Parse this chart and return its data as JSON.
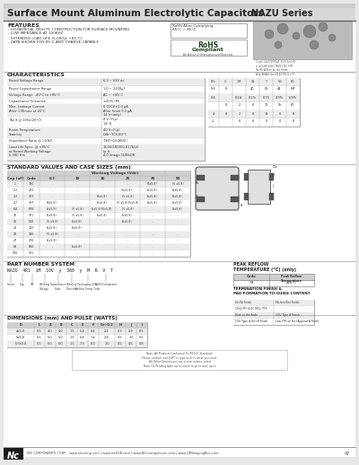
{
  "title_left": "Surface Mount Aluminum Electrolytic Capacitors",
  "title_right": "NAZU Series",
  "bg_color": "#e8e8e8",
  "content_bg": "#f0f0f0",
  "header_line_color": "#555555",
  "text_color": "#333333",
  "features_title": "FEATURES",
  "features": [
    "- CYLINDRICAL HIGH PC CONSTRUCTION FOR SURFACE MOUNTING",
    "- LOW IMPEDANCE AT 100KHZ",
    "- EXTENDED LOAD LIFE (5,000@ +85°C)",
    "- DATA SHOWN FOR 85°C ANTI CHARGE CAPABLE"
  ],
  "rohs_line1": "RoHS After Complying",
  "rohs_line2": "85°C ~ 85°C",
  "rohs_box": "RoHS\nCompliant",
  "rohs_sub": "An Achoa of Homogeneous Materials",
  "char_title": "CHARACTERISTICS",
  "char_col1": [
    "Rated Voltage Range",
    "Rated Capacitance Range",
    "Voltage Range  -40°C to +85°C",
    "Capacitance Tolerance",
    "Max. Leakage Current\nAfter 1 Minute at 20°C",
    "Tan δ @ 20Hz(20°C)",
    "Room Temperature\nStability",
    "Impedance Ratio @ 1 KHZ",
    "Load Life Spec. @ +85°C\nat Rated Working Voltage\n5,000 Hrs"
  ],
  "char_col2": [
    "6.3 ~ 63V dc",
    "1.0 ~ 2200μF",
    "AC ~ +85°C",
    "±20% (M)",
    "0.01CV+1.0 μA\nAfter 5min 2.0 μA\n14 Ir (only)",
    "8 V~F(p)\n14  8",
    "40 V~F(p)\nCdb~TCS-40°C",
    "7.8(F)(100KHZ)",
    "13,000,000(0.0176(U)\nIp Ir\n4.0 Image CURSOR"
  ],
  "sv_title": "STANDARD VALUES AND CASE SIZES (mm)",
  "sv_headers": [
    "Cap (uF)",
    "Code",
    "6.3",
    "10",
    "16",
    "25",
    "35",
    "50"
  ],
  "sv_rows": [
    [
      "1",
      "1R0",
      ".",
      ".",
      ".",
      ".",
      "(4x5.8)",
      "(5 x5.8)"
    ],
    [
      "2.2",
      "2R2",
      ".",
      ".",
      ".",
      "(5x5.8)",
      "(5x5.8)",
      "(5x5.8)"
    ],
    [
      "3.3",
      "3R3",
      ".",
      ".",
      "(4x5.8)",
      "(5 x5.8)",
      "(5x5.8)",
      "(6x5.8)"
    ],
    [
      "4.7",
      "4R7",
      "(4x5.8)",
      ".",
      "(5x5.8)",
      "(5 x5.8)(5x5.8)",
      "(5x5.8)",
      "(5x5.8)"
    ],
    [
      "6.8",
      "6R8",
      "(5x5.8)",
      "(5 x5.8)",
      "(5x5.8)(5x5.8)",
      "(5 x5.8)",
      ".",
      "(5x5.8)"
    ],
    [
      "10",
      "101",
      "(5x5.8)",
      "(5 x5.8)",
      "(5x5.8)",
      "(5x5.8)",
      ".",
      "."
    ],
    [
      "15",
      "150",
      "(5 x5.8)",
      "(5x5.8)",
      ".",
      "(5x5.8)",
      ".",
      "."
    ],
    [
      "22",
      "220",
      "(5x5.8)",
      "(5x5.8)",
      ".",
      ".",
      ".",
      "."
    ],
    [
      "33",
      "330",
      "(5 x5.8)",
      ".",
      ".",
      ".",
      ".",
      "."
    ],
    [
      "47",
      "470",
      "(5x5.8)",
      ".",
      ".",
      ".",
      ".",
      "."
    ],
    [
      "68",
      "680",
      ".",
      "(5x5.8)",
      ".",
      ".",
      ".",
      "."
    ],
    [
      "100",
      "101",
      ".",
      ".",
      ".",
      ".",
      ".",
      "."
    ]
  ],
  "pn_title": "PART NUMBER SYSTEM",
  "pn_example": "NAZU  4R1  1M  10V  y  360  y  M  R  V  T",
  "pn_labels": [
    "Series",
    "Cap",
    "1M",
    "Working\nVoltage",
    "Capacitance\nCode",
    "Winding\nDirection",
    "Packaging/Packaging Only\nReflow Temperature Code",
    "RoHS(Compliant)"
  ],
  "peak_title": "PEAK REFLOW\nTEMPERATURE (°C) (only)",
  "peak_headers": [
    "Code",
    "Peak Reflow\nTemperature"
  ],
  "peak_rows": [
    [
      "M",
      "260°C"
    ]
  ],
  "term_title": "TERMINATION FINISH &\nPAD FORMATION TO GUIDE CONTENT",
  "term_rows": [
    [
      "Sn-Pb Finish",
      "Pb-free(Sn) Finish"
    ],
    [
      "COUL MF ELECTROL YTR",
      ""
    ],
    [
      "Both Plated at the Ends",
      ""
    ],
    [
      "COU with Type A Finish",
      "Low Type with Fin Append A Finish"
    ]
  ],
  "dim_title": "DIMENSIONS (mm) AND PULSE (WATTS)",
  "dim_headers": [
    "D",
    "L",
    "A",
    "B",
    "C",
    "E",
    "F",
    "G+/-0.2",
    "H",
    "J",
    "I"
  ],
  "dim_rows": [
    [
      "4x5.8",
      "5.5",
      "4.0",
      "4.0",
      "1.5",
      "5.4",
      "6.4",
      "2.2",
      "0.3",
      "2.9",
      "0.5"
    ],
    [
      "5x5.8",
      "5.5",
      "5.0",
      "5.0",
      "1.5",
      "6.4",
      "7.4",
      "2.8",
      "0.5",
      "3.5",
      "0.5"
    ],
    [
      "6.3x5.8",
      "5.5",
      "6.0",
      "6.0",
      "1.5",
      "7.3",
      "8.3",
      "3.0",
      "0.5",
      "4.5",
      "0.8"
    ]
  ],
  "note_text": "Note: All Products Conformal To JP1001 Standard\nPlease confirm size JUPT or type to fit is what you need\nAll Other Dimensions are in mm unless noted\nNote (1) Pending Spec up to check to go to next up to",
  "footer_logo": "Nc",
  "footer_text": "NIC COMPONENTS CORP.   www.niccomp.com | www.nicEUR.com | www.NICcomponents.com | www.QMImagingBox.com",
  "page_num": "47"
}
